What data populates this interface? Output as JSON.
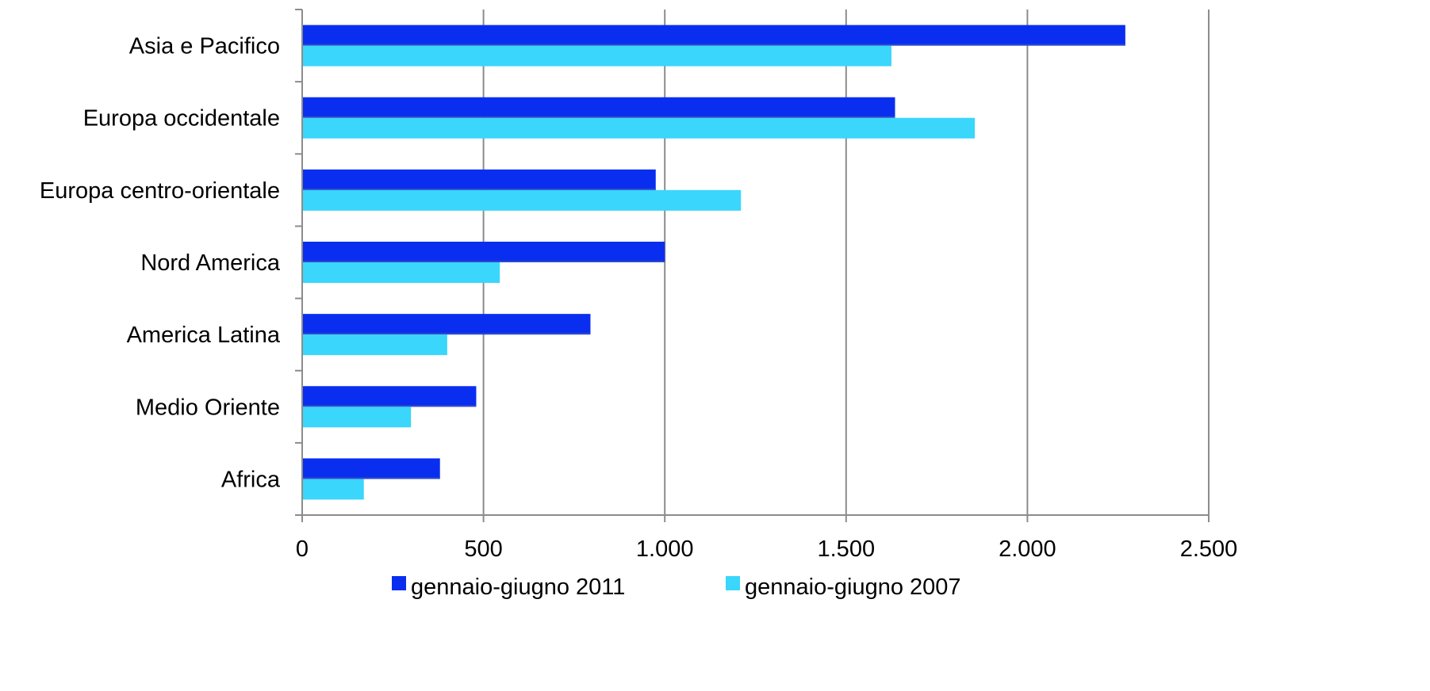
{
  "chart_data": {
    "type": "bar",
    "orientation": "horizontal",
    "categories": [
      "Asia e Pacifico",
      "Europa occidentale",
      "Europa centro-orientale",
      "Nord America",
      "America Latina",
      "Medio Oriente",
      "Africa"
    ],
    "series": [
      {
        "name": "gennaio-giugno 2011",
        "color": "#0a2ef0",
        "values": [
          2270,
          1635,
          975,
          1000,
          795,
          480,
          380
        ]
      },
      {
        "name": "gennaio-giugno 2007",
        "color": "#3ad6fb",
        "values": [
          1625,
          1855,
          1210,
          545,
          400,
          300,
          170
        ]
      }
    ],
    "xlim": [
      0,
      2500
    ],
    "xticks": [
      0,
      500,
      1000,
      1500,
      2000,
      2500
    ],
    "xtick_labels": [
      "0",
      "500",
      "1.000",
      "1.500",
      "2.000",
      "2.500"
    ],
    "title": "",
    "xlabel": "",
    "ylabel": "",
    "grid": "vertical",
    "legend_position": "bottom"
  }
}
